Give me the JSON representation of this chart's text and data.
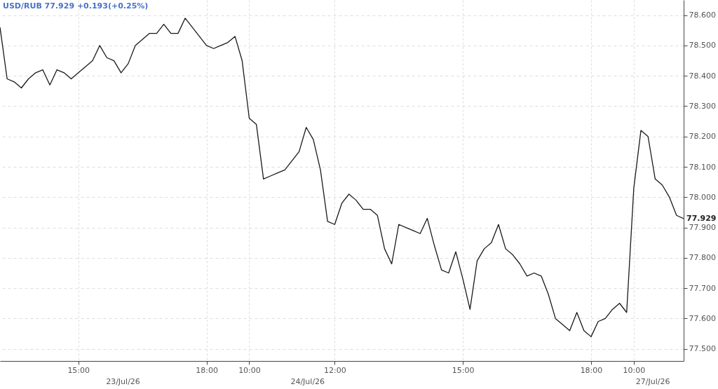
{
  "chart_data": {
    "type": "line",
    "title": "USD/RUB 77.929 +0.193(+0.25%)",
    "categories": [
      null,
      null,
      null,
      null,
      null,
      null,
      null,
      null,
      null,
      null,
      null,
      "15:00",
      null,
      null,
      null,
      null,
      null,
      null,
      null,
      null,
      null,
      null,
      null,
      null,
      null,
      null,
      null,
      null,
      null,
      "18:00",
      null,
      null,
      null,
      null,
      null,
      "10:00",
      null,
      null,
      null,
      null,
      null,
      null,
      null,
      null,
      null,
      null,
      null,
      "12:00",
      null,
      null,
      null,
      null,
      null,
      null,
      null,
      null,
      null,
      null,
      null,
      null,
      null,
      null,
      null,
      null,
      null,
      "15:00",
      null,
      null,
      null,
      null,
      null,
      null,
      null,
      null,
      null,
      null,
      null,
      null,
      null,
      null,
      null,
      null,
      null,
      "18:00",
      null,
      null,
      null,
      null,
      null,
      "10:00",
      null,
      null,
      null,
      null,
      null,
      null,
      null
    ],
    "series": [
      {
        "color": "#1a1a1a",
        "values": [
          78.56,
          78.39,
          78.38,
          78.36,
          78.39,
          78.41,
          78.42,
          78.37,
          78.42,
          78.41,
          78.39,
          78.41,
          78.43,
          78.45,
          78.5,
          78.46,
          78.45,
          78.41,
          78.44,
          78.5,
          78.52,
          78.54,
          78.54,
          78.57,
          78.54,
          78.54,
          78.59,
          78.56,
          78.53,
          78.5,
          78.49,
          78.5,
          78.51,
          78.53,
          78.45,
          78.26,
          78.24,
          78.06,
          78.07,
          78.08,
          78.09,
          78.12,
          78.15,
          78.23,
          78.19,
          78.09,
          77.92,
          77.91,
          77.98,
          78.01,
          77.99,
          77.96,
          77.96,
          77.94,
          77.83,
          77.78,
          77.91,
          77.9,
          77.89,
          77.88,
          77.93,
          77.84,
          77.76,
          77.75,
          77.82,
          77.73,
          77.63,
          77.79,
          77.83,
          77.85,
          77.91,
          77.83,
          77.81,
          77.78,
          77.74,
          77.75,
          77.74,
          77.68,
          77.6,
          77.58,
          77.56,
          77.62,
          77.56,
          77.54,
          77.59,
          77.6,
          77.63,
          77.65,
          77.62,
          78.03,
          78.22,
          78.2,
          78.06,
          78.04,
          78.0,
          77.94,
          77.929
        ]
      }
    ],
    "ylim": [
      77.46,
      78.65
    ],
    "yticks": [
      {
        "value": 77.5,
        "label": "77.500"
      },
      {
        "value": 77.6,
        "label": "77.600"
      },
      {
        "value": 77.7,
        "label": "77.700"
      },
      {
        "value": 77.8,
        "label": "77.800"
      },
      {
        "value": 77.9,
        "label": "77.900"
      },
      {
        "value": 78.0,
        "label": "78.000"
      },
      {
        "value": 78.1,
        "label": "78.100"
      },
      {
        "value": 78.2,
        "label": "78.200"
      },
      {
        "value": 78.3,
        "label": "78.300"
      },
      {
        "value": 78.4,
        "label": "78.400"
      },
      {
        "value": 78.5,
        "label": "78.500"
      },
      {
        "value": 78.6,
        "label": "78.600"
      }
    ],
    "grid": true,
    "line_style": "solid",
    "annotations": [
      "23/Jul/26",
      "24/Jul/26",
      "27/Jul/26",
      "77.929"
    ]
  }
}
